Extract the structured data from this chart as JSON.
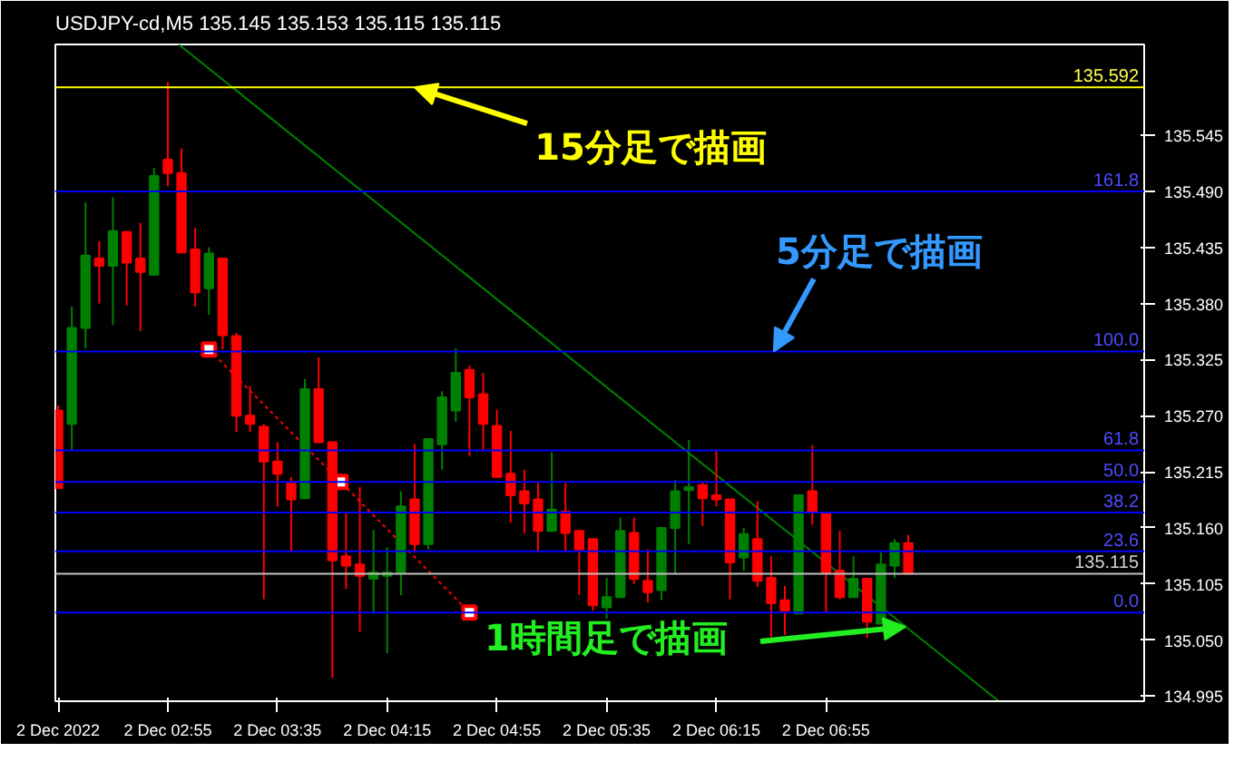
{
  "chart_data": {
    "type": "candlestick",
    "title": "USDJPY-cd,M5  135.145 135.153 135.115 135.115",
    "x": [
      "2022-12-02T02:15",
      "2022-12-02T02:20",
      "2022-12-02T02:25",
      "2022-12-02T02:30",
      "2022-12-02T02:35",
      "2022-12-02T02:40",
      "2022-12-02T02:45",
      "2022-12-02T02:50",
      "2022-12-02T02:55",
      "2022-12-02T03:00",
      "2022-12-02T03:05",
      "2022-12-02T03:10",
      "2022-12-02T03:15",
      "2022-12-02T03:20",
      "2022-12-02T03:25",
      "2022-12-02T03:30",
      "2022-12-02T03:35",
      "2022-12-02T03:40",
      "2022-12-02T03:45",
      "2022-12-02T03:50",
      "2022-12-02T03:55",
      "2022-12-02T04:00",
      "2022-12-02T04:05",
      "2022-12-02T04:10",
      "2022-12-02T04:15",
      "2022-12-02T04:20",
      "2022-12-02T04:25",
      "2022-12-02T04:30",
      "2022-12-02T04:35",
      "2022-12-02T04:40",
      "2022-12-02T04:45",
      "2022-12-02T04:50",
      "2022-12-02T04:55",
      "2022-12-02T05:00",
      "2022-12-02T05:05",
      "2022-12-02T05:10",
      "2022-12-02T05:15",
      "2022-12-02T05:20",
      "2022-12-02T05:25",
      "2022-12-02T05:30",
      "2022-12-02T05:35",
      "2022-12-02T05:40",
      "2022-12-02T05:45",
      "2022-12-02T05:50",
      "2022-12-02T05:55",
      "2022-12-02T06:00",
      "2022-12-02T06:05",
      "2022-12-02T06:10",
      "2022-12-02T06:15",
      "2022-12-02T06:20",
      "2022-12-02T06:25",
      "2022-12-02T06:30",
      "2022-12-02T06:35",
      "2022-12-02T06:40",
      "2022-12-02T06:45",
      "2022-12-02T06:50",
      "2022-12-02T06:55",
      "2022-12-02T07:00",
      "2022-12-02T07:05",
      "2022-12-02T07:10",
      "2022-12-02T07:15",
      "2022-12-02T07:20",
      "2022-12-02T07:25"
    ],
    "ohlc": [
      [
        135.275,
        135.28,
        135.199,
        135.199
      ],
      [
        135.262,
        135.377,
        135.236,
        135.356
      ],
      [
        135.356,
        135.479,
        135.336,
        135.427
      ],
      [
        135.424,
        135.441,
        135.38,
        135.417
      ],
      [
        135.417,
        135.484,
        135.359,
        135.451
      ],
      [
        135.45,
        135.45,
        135.378,
        135.42
      ],
      [
        135.424,
        135.459,
        135.353,
        135.411
      ],
      [
        135.408,
        135.513,
        135.408,
        135.505
      ],
      [
        135.521,
        135.597,
        135.495,
        135.508
      ],
      [
        135.508,
        135.532,
        135.43,
        135.43
      ],
      [
        135.433,
        135.454,
        135.377,
        135.391
      ],
      [
        135.395,
        135.435,
        135.369,
        135.429
      ],
      [
        135.424,
        135.424,
        135.335,
        135.349
      ],
      [
        135.348,
        135.351,
        135.254,
        135.27
      ],
      [
        135.27,
        135.299,
        135.254,
        135.262
      ],
      [
        135.259,
        135.262,
        135.09,
        135.225
      ],
      [
        135.225,
        135.244,
        135.181,
        135.213
      ],
      [
        135.204,
        135.21,
        135.137,
        135.188
      ],
      [
        135.189,
        135.306,
        135.189,
        135.296
      ],
      [
        135.296,
        135.327,
        135.244,
        135.244
      ],
      [
        135.244,
        135.244,
        135.013,
        135.128
      ],
      [
        135.132,
        135.175,
        135.1,
        135.123
      ],
      [
        135.124,
        135.2,
        135.058,
        135.113
      ],
      [
        135.11,
        135.158,
        135.076,
        135.116
      ],
      [
        135.113,
        135.141,
        135.037,
        135.116
      ],
      [
        135.116,
        135.196,
        135.094,
        135.181
      ],
      [
        135.188,
        135.242,
        135.136,
        135.144
      ],
      [
        135.144,
        135.247,
        135.139,
        135.247
      ],
      [
        135.242,
        135.294,
        135.217,
        135.288
      ],
      [
        135.275,
        135.336,
        135.264,
        135.312
      ],
      [
        135.315,
        135.319,
        135.23,
        135.288
      ],
      [
        135.291,
        135.312,
        135.236,
        135.262
      ],
      [
        135.26,
        135.276,
        135.21,
        135.21
      ],
      [
        135.213,
        135.255,
        135.165,
        135.192
      ],
      [
        135.196,
        135.217,
        135.155,
        135.184
      ],
      [
        135.188,
        135.205,
        135.136,
        135.157
      ],
      [
        135.157,
        135.234,
        135.157,
        135.178
      ],
      [
        135.176,
        135.204,
        135.136,
        135.155
      ],
      [
        135.157,
        135.158,
        135.094,
        135.139
      ],
      [
        135.149,
        135.149,
        135.079,
        135.084
      ],
      [
        135.082,
        135.111,
        135.071,
        135.092
      ],
      [
        135.092,
        135.17,
        135.092,
        135.157
      ],
      [
        135.155,
        135.17,
        135.105,
        135.11
      ],
      [
        135.108,
        135.139,
        135.087,
        135.097
      ],
      [
        135.099,
        135.16,
        135.089,
        135.16
      ],
      [
        135.16,
        135.207,
        135.115,
        135.196
      ],
      [
        135.197,
        135.246,
        135.144,
        135.2
      ],
      [
        135.202,
        135.205,
        135.162,
        135.189
      ],
      [
        135.192,
        135.236,
        135.181,
        135.188
      ],
      [
        135.188,
        135.188,
        135.09,
        135.126
      ],
      [
        135.131,
        135.16,
        135.118,
        135.154
      ],
      [
        135.149,
        135.186,
        135.102,
        135.108
      ],
      [
        135.111,
        135.132,
        135.053,
        135.086
      ],
      [
        135.089,
        135.103,
        135.055,
        135.079
      ],
      [
        135.076,
        135.192,
        135.076,
        135.192
      ],
      [
        135.196,
        135.241,
        135.163,
        135.175
      ],
      [
        135.175,
        135.175,
        135.077,
        135.116
      ],
      [
        135.118,
        135.157,
        135.09,
        135.092
      ],
      [
        135.092,
        135.132,
        135.092,
        135.11
      ],
      [
        135.11,
        135.11,
        135.052,
        135.068
      ],
      [
        135.066,
        135.136,
        135.066,
        135.124
      ],
      [
        135.123,
        135.149,
        135.111,
        135.145
      ],
      [
        135.145,
        135.153,
        135.115,
        135.115
      ]
    ],
    "colors": [
      "#ff0000",
      "#008000",
      "#008000",
      "#ff0000",
      "#008000",
      "#ff0000",
      "#ff0000",
      "#008000",
      "#ff0000",
      "#ff0000",
      "#ff0000",
      "#008000",
      "#ff0000",
      "#ff0000",
      "#ff0000",
      "#ff0000",
      "#ff0000",
      "#ff0000",
      "#008000",
      "#ff0000",
      "#ff0000",
      "#ff0000",
      "#ff0000",
      "#008000",
      "#008000",
      "#008000",
      "#ff0000",
      "#008000",
      "#008000",
      "#008000",
      "#ff0000",
      "#ff0000",
      "#ff0000",
      "#ff0000",
      "#ff0000",
      "#ff0000",
      "#008000",
      "#ff0000",
      "#ff0000",
      "#ff0000",
      "#008000",
      "#008000",
      "#ff0000",
      "#ff0000",
      "#008000",
      "#008000",
      "#008000",
      "#ff0000",
      "#ff0000",
      "#ff0000",
      "#008000",
      "#ff0000",
      "#ff0000",
      "#ff0000",
      "#008000",
      "#ff0000",
      "#ff0000",
      "#ff0000",
      "#008000",
      "#ff0000",
      "#008000",
      "#008000",
      "#ff0000"
    ],
    "series": [
      {
        "type": "line",
        "color": "#008000",
        "line_style": "solid",
        "x": [
          "2022-12-02T02:59",
          "2022-12-02T07:58"
        ],
        "values": [
          135.634,
          134.99
        ]
      },
      {
        "type": "line",
        "color": "#ff0000",
        "line_style": "dotted",
        "marker": "square",
        "x": [
          "2022-12-02T03:10",
          "2022-12-02T03:58",
          "2022-12-02T04:45"
        ],
        "values": [
          135.335,
          135.205,
          135.077
        ]
      }
    ],
    "ref_lines": [
      {
        "axis": "y",
        "value": 135.592,
        "label": "135.592",
        "color": "#ffff00"
      },
      {
        "axis": "y",
        "value": 135.115,
        "label": "135.115",
        "color": "#c0c0c0"
      },
      {
        "axis": "y",
        "value": 135.49,
        "color": "#0000ff"
      },
      {
        "axis": "y",
        "value": 135.333,
        "color": "#0000ff"
      },
      {
        "axis": "y",
        "value": 135.236,
        "color": "#0000ff"
      },
      {
        "axis": "y",
        "value": 135.205,
        "color": "#0000ff"
      },
      {
        "axis": "y",
        "value": 135.175,
        "color": "#0000ff"
      },
      {
        "axis": "y",
        "value": 135.137,
        "color": "#0000ff"
      },
      {
        "axis": "y",
        "value": 135.077,
        "color": "#0000ff"
      }
    ],
    "annotations": [
      {
        "text": "15分足で描画",
        "x": "2022-12-02T04:25",
        "y": 135.592
      },
      {
        "text": "5分足で描画",
        "x": "2022-12-02T06:36",
        "y": 135.333
      },
      {
        "text": "1時間足で描画",
        "x": "2022-12-02T07:24",
        "y": 135.063
      },
      {
        "text": "161.8",
        "x": "2022-12-02T08:51",
        "y": 135.49
      },
      {
        "text": "100.0",
        "x": "2022-12-02T08:51",
        "y": 135.333
      },
      {
        "text": "61.8",
        "x": "2022-12-02T08:51",
        "y": 135.236
      },
      {
        "text": "50.0",
        "x": "2022-12-02T08:51",
        "y": 135.205
      },
      {
        "text": "38.2",
        "x": "2022-12-02T08:51",
        "y": 135.175
      },
      {
        "text": "23.6",
        "x": "2022-12-02T08:51",
        "y": 135.137
      },
      {
        "text": "0.0",
        "x": "2022-12-02T08:51",
        "y": 135.077
      }
    ],
    "xlim": [
      "2022-12-02T02:14",
      "2022-12-02T08:51"
    ],
    "ylim": [
      134.99,
      135.634
    ],
    "xticks": [
      {
        "value": "2022-12-02T02:15",
        "label": "2 Dec 2022"
      },
      {
        "value": "2022-12-02T02:55",
        "label": "2 Dec 02:55"
      },
      {
        "value": "2022-12-02T03:35",
        "label": "2 Dec 03:35"
      },
      {
        "value": "2022-12-02T04:15",
        "label": "2 Dec 04:15"
      },
      {
        "value": "2022-12-02T04:55",
        "label": "2 Dec 04:55"
      },
      {
        "value": "2022-12-02T05:35",
        "label": "2 Dec 05:35"
      },
      {
        "value": "2022-12-02T06:15",
        "label": "2 Dec 06:15"
      },
      {
        "value": "2022-12-02T06:55",
        "label": "2 Dec 06:55"
      }
    ],
    "yticks": [
      135.545,
      {
        "value": 135.49,
        "label": "135.490"
      },
      135.435,
      {
        "value": 135.38,
        "label": "135.380"
      },
      135.325,
      {
        "value": 135.27,
        "label": "135.270"
      },
      135.215,
      {
        "value": 135.16,
        "label": "135.160"
      },
      135.105,
      {
        "value": 135.05,
        "label": "135.050"
      },
      134.995
    ],
    "grid": false
  }
}
